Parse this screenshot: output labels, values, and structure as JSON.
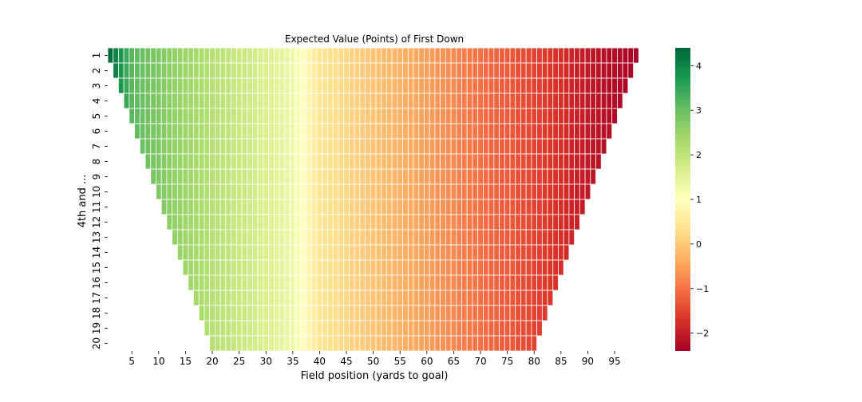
{
  "chart_data": {
    "type": "heatmap",
    "title": "Expected Value (Points) of First Down",
    "xlabel": "Field position (yards to goal)",
    "ylabel": "4th and ...",
    "x_tick_labels": [
      "5",
      "10",
      "15",
      "20",
      "25",
      "30",
      "35",
      "40",
      "45",
      "50",
      "55",
      "60",
      "65",
      "70",
      "75",
      "80",
      "85",
      "90",
      "95"
    ],
    "x_range": [
      1,
      99
    ],
    "y_tick_labels": [
      "1",
      "2",
      "3",
      "4",
      "5",
      "6",
      "7",
      "8",
      "9",
      "10",
      "11",
      "12",
      "13",
      "14",
      "15",
      "16",
      "17",
      "18",
      "19",
      "20"
    ],
    "value_rule": "Cell (4th and d, yards to goal x) exists for x >= d and x <= 100 - d; expected value depends mainly on x",
    "ev_by_yards_to_goal": {
      "x": [
        1,
        5,
        10,
        15,
        20,
        25,
        30,
        35,
        40,
        45,
        50,
        55,
        60,
        65,
        70,
        75,
        80,
        85,
        90,
        95,
        99
      ],
      "ev": [
        4.3,
        3.15,
        2.75,
        2.45,
        2.15,
        1.9,
        1.65,
        1.3,
        0.45,
        0.2,
        -0.05,
        -0.3,
        -0.5,
        -0.75,
        -1.0,
        -1.25,
        -1.5,
        -1.75,
        -2.05,
        -2.25,
        -2.35
      ]
    },
    "colorbar": {
      "colormap": "RdYlGn",
      "range": [
        -2.4,
        4.4
      ],
      "tick_labels": [
        "4",
        "3",
        "2",
        "1",
        "0",
        "−1",
        "−2"
      ],
      "tick_values": [
        4,
        3,
        2,
        1,
        0,
        -1,
        -2
      ]
    },
    "grid": false,
    "cell_border_color": "#ffffff"
  }
}
